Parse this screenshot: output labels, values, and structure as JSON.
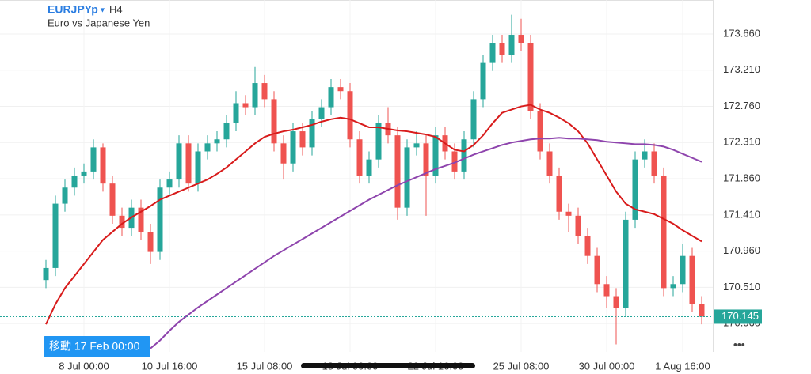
{
  "chart_data": {
    "type": "candlestick",
    "symbol": "EURJPYp",
    "timeframe": "H4",
    "subtitle": "Euro vs Japanese Yen",
    "goto_label": "移動 17 Feb 00:00",
    "last_price": 170.145,
    "up_color": "#26a69a",
    "down_color": "#ef5350",
    "ylim": [
      169.707,
      174.083
    ],
    "yticks": [
      {
        "value": 170.06,
        "label": "170.060"
      },
      {
        "value": 170.51,
        "label": "170.510"
      },
      {
        "value": 170.96,
        "label": "170.960"
      },
      {
        "value": 171.41,
        "label": "171.410"
      },
      {
        "value": 171.86,
        "label": "171.860"
      },
      {
        "value": 172.31,
        "label": "172.310"
      },
      {
        "value": 172.76,
        "label": "172.760"
      },
      {
        "value": 173.21,
        "label": "173.210"
      },
      {
        "value": 173.66,
        "label": "173.660"
      }
    ],
    "grid": true,
    "categories": [
      null,
      null,
      null,
      null,
      "8 Jul 00:00",
      null,
      null,
      null,
      null,
      null,
      null,
      null,
      null,
      "10 Jul 16:00",
      null,
      null,
      null,
      null,
      null,
      null,
      null,
      null,
      null,
      "15 Jul 08:00",
      null,
      null,
      null,
      null,
      null,
      null,
      null,
      null,
      "18 Jul 00:00",
      null,
      null,
      null,
      null,
      null,
      null,
      null,
      null,
      "22 Jul 16:00",
      null,
      null,
      null,
      null,
      null,
      null,
      null,
      null,
      "25 Jul 08:00",
      null,
      null,
      null,
      null,
      null,
      null,
      null,
      null,
      "30 Jul 00:00",
      null,
      null,
      null,
      null,
      null,
      null,
      null,
      "1 Aug 16:00",
      null,
      null
    ],
    "open": [
      170.6,
      170.75,
      171.55,
      171.75,
      171.9,
      171.95,
      172.25,
      171.8,
      171.4,
      171.25,
      171.5,
      171.2,
      170.95,
      171.75,
      171.85,
      172.3,
      171.8,
      172.2,
      172.3,
      172.35,
      172.55,
      172.8,
      172.75,
      173.05,
      172.85,
      172.3,
      172.05,
      172.45,
      172.25,
      172.6,
      172.75,
      173.0,
      172.95,
      172.35,
      171.9,
      172.1,
      172.55,
      172.4,
      171.5,
      172.25,
      172.3,
      171.9,
      172.4,
      172.2,
      171.95,
      172.35,
      172.85,
      173.3,
      173.55,
      173.4,
      173.65,
      173.55,
      172.7,
      172.2,
      171.9,
      171.45,
      171.4,
      171.15,
      170.9,
      170.55,
      170.4,
      170.25,
      171.35,
      172.1,
      172.2,
      171.9,
      170.5,
      170.55,
      170.9,
      170.3
    ],
    "high": [
      170.85,
      171.65,
      171.85,
      172.0,
      172.05,
      172.35,
      172.3,
      171.9,
      171.5,
      171.6,
      171.6,
      171.3,
      171.85,
      171.95,
      172.4,
      172.4,
      172.3,
      172.4,
      172.45,
      172.65,
      172.95,
      172.9,
      173.25,
      173.15,
      172.95,
      172.4,
      172.55,
      172.55,
      172.7,
      172.85,
      173.1,
      173.1,
      173.05,
      172.45,
      172.2,
      172.65,
      172.75,
      172.5,
      172.35,
      172.45,
      172.4,
      172.5,
      172.5,
      172.3,
      172.45,
      172.95,
      173.4,
      173.65,
      173.65,
      173.9,
      173.85,
      173.65,
      172.8,
      172.3,
      172.0,
      171.55,
      171.5,
      171.25,
      171.0,
      170.65,
      170.5,
      171.45,
      172.2,
      172.35,
      172.3,
      172.0,
      170.65,
      171.05,
      171.0,
      170.4
    ],
    "low": [
      170.5,
      170.65,
      171.45,
      171.65,
      171.8,
      171.85,
      171.7,
      171.3,
      171.15,
      171.15,
      171.1,
      170.8,
      170.85,
      171.65,
      171.75,
      171.7,
      171.7,
      172.1,
      172.2,
      172.25,
      172.45,
      172.65,
      172.65,
      172.75,
      172.2,
      171.85,
      171.95,
      172.15,
      172.15,
      172.5,
      172.65,
      172.85,
      172.25,
      171.8,
      171.8,
      172.0,
      172.3,
      171.35,
      171.4,
      172.15,
      171.4,
      171.8,
      172.1,
      171.85,
      171.85,
      172.25,
      172.75,
      173.2,
      173.3,
      173.3,
      173.45,
      172.6,
      172.1,
      171.8,
      171.35,
      171.2,
      171.05,
      170.8,
      170.45,
      170.25,
      169.8,
      170.15,
      171.25,
      172.0,
      171.8,
      170.4,
      170.4,
      170.45,
      170.2,
      170.05
    ],
    "close": [
      170.75,
      171.55,
      171.75,
      171.9,
      171.95,
      172.25,
      171.8,
      171.4,
      171.25,
      171.5,
      171.2,
      170.95,
      171.75,
      171.85,
      172.3,
      171.8,
      172.2,
      172.3,
      172.35,
      172.55,
      172.8,
      172.75,
      173.05,
      172.85,
      172.3,
      172.05,
      172.45,
      172.25,
      172.6,
      172.75,
      173.0,
      172.95,
      172.35,
      171.9,
      172.1,
      172.55,
      172.4,
      171.5,
      172.25,
      172.3,
      171.9,
      172.4,
      172.2,
      171.95,
      172.35,
      172.85,
      173.3,
      173.55,
      173.4,
      173.65,
      173.55,
      172.7,
      172.2,
      171.9,
      171.45,
      171.4,
      171.15,
      170.9,
      170.55,
      170.4,
      170.25,
      171.35,
      172.1,
      172.2,
      171.9,
      170.5,
      170.55,
      170.9,
      170.3,
      170.145
    ],
    "overlays": [
      {
        "color": "#d81b1b",
        "values": [
          170.05,
          170.3,
          170.5,
          170.65,
          170.8,
          170.95,
          171.1,
          171.2,
          171.3,
          171.38,
          171.45,
          171.52,
          171.6,
          171.65,
          171.7,
          171.75,
          171.8,
          171.85,
          171.92,
          172.0,
          172.1,
          172.2,
          172.3,
          172.38,
          172.42,
          172.45,
          172.47,
          172.5,
          172.53,
          172.57,
          172.6,
          172.62,
          172.6,
          172.55,
          172.5,
          172.5,
          172.48,
          172.46,
          172.45,
          172.43,
          172.41,
          172.38,
          172.3,
          172.22,
          172.2,
          172.28,
          172.4,
          172.55,
          172.68,
          172.72,
          172.76,
          172.78,
          172.72,
          172.68,
          172.62,
          172.55,
          172.45,
          172.3,
          172.1,
          171.9,
          171.7,
          171.55,
          171.48,
          171.45,
          171.42,
          171.36,
          171.3,
          171.22,
          171.15,
          171.08
        ]
      },
      {
        "color": "#8e44ad",
        "values": [
          null,
          null,
          null,
          null,
          null,
          null,
          null,
          null,
          null,
          null,
          null,
          169.75,
          169.85,
          169.97,
          170.08,
          170.17,
          170.26,
          170.34,
          170.42,
          170.5,
          170.58,
          170.66,
          170.74,
          170.82,
          170.9,
          170.97,
          171.04,
          171.11,
          171.18,
          171.25,
          171.32,
          171.39,
          171.46,
          171.53,
          171.6,
          171.66,
          171.72,
          171.78,
          171.83,
          171.88,
          171.93,
          171.98,
          172.02,
          172.06,
          172.11,
          172.16,
          172.2,
          172.24,
          172.28,
          172.31,
          172.33,
          172.35,
          172.36,
          172.36,
          172.37,
          172.36,
          172.36,
          172.35,
          172.34,
          172.32,
          172.31,
          172.3,
          172.29,
          172.29,
          172.28,
          172.26,
          172.22,
          172.17,
          172.12,
          172.07
        ]
      }
    ]
  }
}
